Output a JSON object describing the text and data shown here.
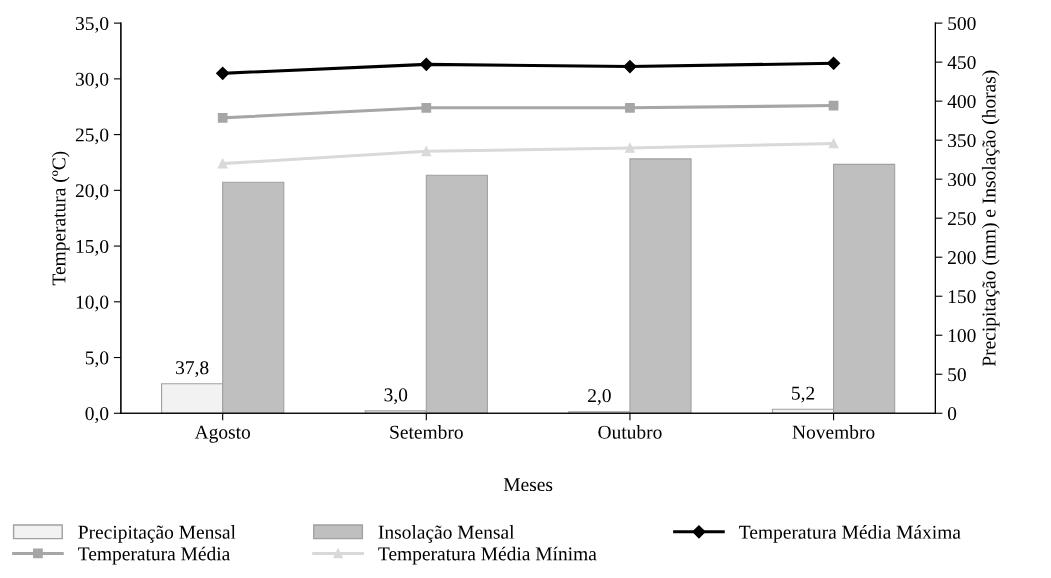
{
  "chart_data": {
    "type": "bar",
    "xlabel": "Meses",
    "ylabel": "Temperatura (ºC)",
    "y2label": "Precipitação (mm) e Insolação (horas)",
    "categories": [
      "Agosto",
      "Setembro",
      "Outubro",
      "Novembro"
    ],
    "series": [
      {
        "name": "Precipitação Mensal",
        "axis": "y2",
        "color": "#f2f2f2",
        "values": [
          37.8,
          3.0,
          2.0,
          5.2
        ],
        "value_labels": [
          "37,8",
          "3,0",
          "2,0",
          "5,2"
        ]
      },
      {
        "name": "Insolação Mensal",
        "axis": "y2",
        "color": "#bfbfbf",
        "values": [
          296,
          305,
          326,
          319
        ]
      },
      {
        "name": "Temperatura Média Máxima",
        "type": "line",
        "color": "#000000",
        "marker": "diamond",
        "values": [
          30.5,
          31.3,
          31.1,
          31.4
        ]
      },
      {
        "name": "Temperatura Média",
        "type": "line",
        "color": "#a6a6a6",
        "marker": "square",
        "values": [
          26.5,
          27.4,
          27.4,
          27.6
        ]
      },
      {
        "name": "Temperatura Média Mínima",
        "type": "line",
        "color": "#d9d9d9",
        "marker": "triangle",
        "values": [
          22.4,
          23.5,
          23.8,
          24.2
        ]
      }
    ],
    "ylim": [
      0,
      35
    ],
    "yticks": [
      {
        "value": 0,
        "label": "0,0"
      },
      {
        "value": 5,
        "label": "5,0"
      },
      {
        "value": 10,
        "label": "10,0"
      },
      {
        "value": 15,
        "label": "15,0"
      },
      {
        "value": 20,
        "label": "20,0"
      },
      {
        "value": 25,
        "label": "25,0"
      },
      {
        "value": 30,
        "label": "30,0"
      },
      {
        "value": 35,
        "label": "35,0"
      }
    ],
    "y2lim": [
      0,
      500
    ],
    "y2ticks": [
      0,
      50,
      100,
      150,
      200,
      250,
      300,
      350,
      400,
      450,
      500
    ],
    "grid": false,
    "legend": "bottom"
  }
}
